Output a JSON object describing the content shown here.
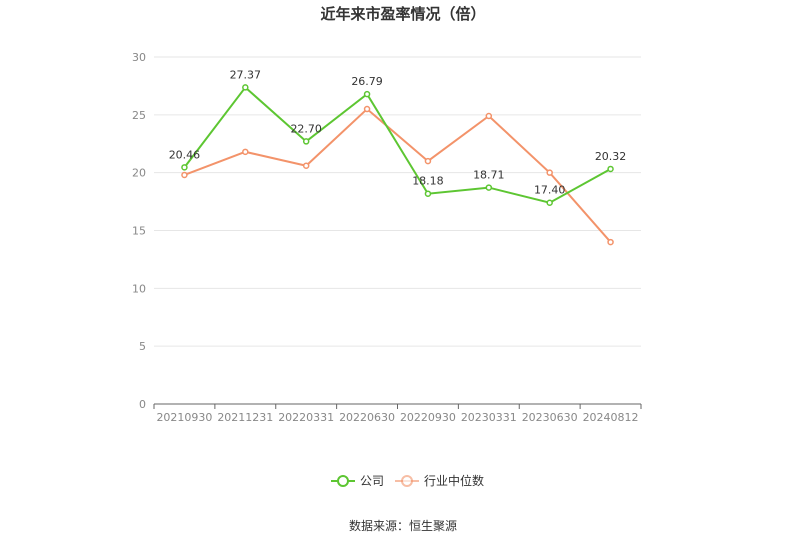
{
  "chart_data": {
    "type": "line",
    "title": "近年来市盈率情况（倍）",
    "categories": [
      "20210930",
      "20211231",
      "20220331",
      "20220630",
      "20220930",
      "20230331",
      "20230630",
      "20240812"
    ],
    "ylim": [
      0,
      30
    ],
    "yticks": [
      0,
      5,
      10,
      15,
      20,
      25,
      30
    ],
    "grid": true,
    "legend_position": "bottom-center",
    "series": [
      {
        "name": "公司",
        "color": "#5dc632",
        "values": [
          20.46,
          27.37,
          22.7,
          26.79,
          18.18,
          18.71,
          17.4,
          20.32
        ],
        "labels": [
          "20.46",
          "27.37",
          "22.70",
          "26.79",
          "18.18",
          "18.71",
          "17.40",
          "20.32"
        ]
      },
      {
        "name": "行业中位数",
        "color": "#f3936a",
        "values": [
          19.8,
          21.8,
          20.6,
          25.5,
          21.0,
          24.9,
          20.0,
          14.0
        ]
      }
    ]
  },
  "footer": {
    "source": "数据来源：恒生聚源"
  }
}
